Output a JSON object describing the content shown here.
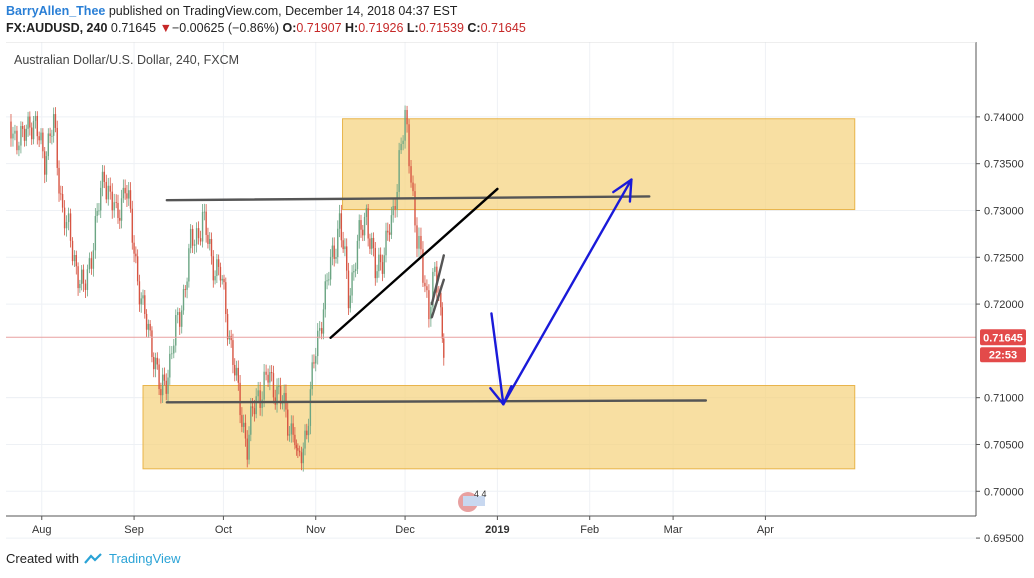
{
  "header": {
    "author": "BarryAllen_Thee",
    "published_text": "published on TradingView.com, December 14, 2018 04:37 EST",
    "symbol": "FX:AUDUSD, 240",
    "last": "0.71645",
    "change_arrow": "▼",
    "change": "−0.00625 (−0.86%)",
    "o_label": "O:",
    "o_value": "0.71907",
    "h_label": "H:",
    "h_value": "0.71926",
    "l_label": "L:",
    "l_value": "0.71539",
    "c_label": "C:",
    "c_value": "0.71645"
  },
  "chart_data": {
    "type": "line",
    "title": "Australian Dollar/U.S. Dollar, 240, FXCM",
    "x_ticks": [
      "Aug",
      "Sep",
      "Oct",
      "Nov",
      "Dec",
      "2019",
      "Feb",
      "Mar",
      "Apr"
    ],
    "y_ticks": [
      "0.74000",
      "0.73500",
      "0.73000",
      "0.72500",
      "0.72000",
      "0.71000",
      "0.70500",
      "0.70000",
      "0.69500"
    ],
    "ylim": [
      0.6937,
      0.7434
    ],
    "current_price": "0.71645",
    "countdown": "22:53",
    "series": [
      {
        "values": [
          [
            "2018-07-21",
            0.7395
          ],
          [
            "2018-07-25",
            0.737
          ],
          [
            "2018-07-28",
            0.74
          ],
          [
            "2018-08-02",
            0.736
          ],
          [
            "2018-08-05",
            0.739
          ],
          [
            "2018-08-08",
            0.73
          ],
          [
            "2018-08-12",
            0.725
          ],
          [
            "2018-08-15",
            0.721
          ],
          [
            "2018-08-19",
            0.728
          ],
          [
            "2018-08-22",
            0.734
          ],
          [
            "2018-08-26",
            0.729
          ],
          [
            "2018-08-29",
            0.733
          ],
          [
            "2018-09-01",
            0.726
          ],
          [
            "2018-09-04",
            0.719
          ],
          [
            "2018-09-07",
            0.716
          ],
          [
            "2018-09-10",
            0.71
          ],
          [
            "2018-09-13",
            0.714
          ],
          [
            "2018-09-17",
            0.72
          ],
          [
            "2018-09-20",
            0.726
          ],
          [
            "2018-09-24",
            0.729
          ],
          [
            "2018-09-27",
            0.725
          ],
          [
            "2018-09-30",
            0.723
          ],
          [
            "2018-10-03",
            0.717
          ],
          [
            "2018-10-06",
            0.71
          ],
          [
            "2018-10-09",
            0.705
          ],
          [
            "2018-10-12",
            0.71
          ],
          [
            "2018-10-16",
            0.712
          ],
          [
            "2018-10-19",
            0.711
          ],
          [
            "2018-10-22",
            0.708
          ],
          [
            "2018-10-25",
            0.706
          ],
          [
            "2018-10-26",
            0.7022
          ],
          [
            "2018-10-29",
            0.707
          ],
          [
            "2018-11-01",
            0.715
          ],
          [
            "2018-11-03",
            0.719
          ],
          [
            "2018-11-06",
            0.724
          ],
          [
            "2018-11-09",
            0.729
          ],
          [
            "2018-11-12",
            0.721
          ],
          [
            "2018-11-15",
            0.726
          ],
          [
            "2018-11-18",
            0.73
          ],
          [
            "2018-11-21",
            0.723
          ],
          [
            "2018-11-24",
            0.726
          ],
          [
            "2018-11-27",
            0.729
          ],
          [
            "2018-11-29",
            0.736
          ],
          [
            "2018-12-01",
            0.7393
          ],
          [
            "2018-12-03",
            0.734
          ],
          [
            "2018-12-05",
            0.727
          ],
          [
            "2018-12-07",
            0.723
          ],
          [
            "2018-12-09",
            0.72
          ],
          [
            "2018-12-11",
            0.723
          ],
          [
            "2018-12-13",
            0.719
          ],
          [
            "2018-12-14",
            0.7164
          ]
        ]
      }
    ],
    "zones": [
      {
        "x1": "2018-11-10",
        "x2": "2019-05-01",
        "y1": 0.7301,
        "y2": 0.7398
      },
      {
        "x1": "2018-09-04",
        "x2": "2019-05-01",
        "y1": 0.7024,
        "y2": 0.7113
      }
    ],
    "trend_lines": [
      {
        "x1": "2018-09-12",
        "y1": 0.7311,
        "x2": "2019-02-21",
        "y2": 0.7315,
        "color": "#555555"
      },
      {
        "x1": "2018-09-12",
        "y1": 0.7095,
        "x2": "2019-03-12",
        "y2": 0.7097,
        "color": "#555555"
      },
      {
        "x1": "2018-11-06",
        "y1": 0.7164,
        "x2": "2019-01-01",
        "y2": 0.7323,
        "color": "#000000"
      },
      {
        "x1": "2018-12-10",
        "y1": 0.7186,
        "x2": "2018-12-14",
        "y2": 0.7226,
        "color": "#555555"
      },
      {
        "x1": "2018-12-10",
        "y1": 0.72,
        "x2": "2018-12-14",
        "y2": 0.7252,
        "color": "#555555"
      }
    ],
    "arrows": [
      {
        "x1": "2018-12-30",
        "y1": 0.719,
        "x2": "2019-01-03",
        "y2": 0.7093
      },
      {
        "x1": "2019-01-03",
        "y1": 0.7093,
        "x2": "2019-02-15",
        "y2": 0.7333
      }
    ],
    "colors": {
      "candle_up": "#6ba583",
      "candle_down": "#d75442",
      "zone_fill": "#f5d17a",
      "zone_border": "#e8b44a",
      "arrow": "#1a1ad9",
      "price_badge": "#e34a4a",
      "grid": "#eef1f5"
    }
  },
  "footer": {
    "created_with": "Created with",
    "brand": "TradingView"
  }
}
